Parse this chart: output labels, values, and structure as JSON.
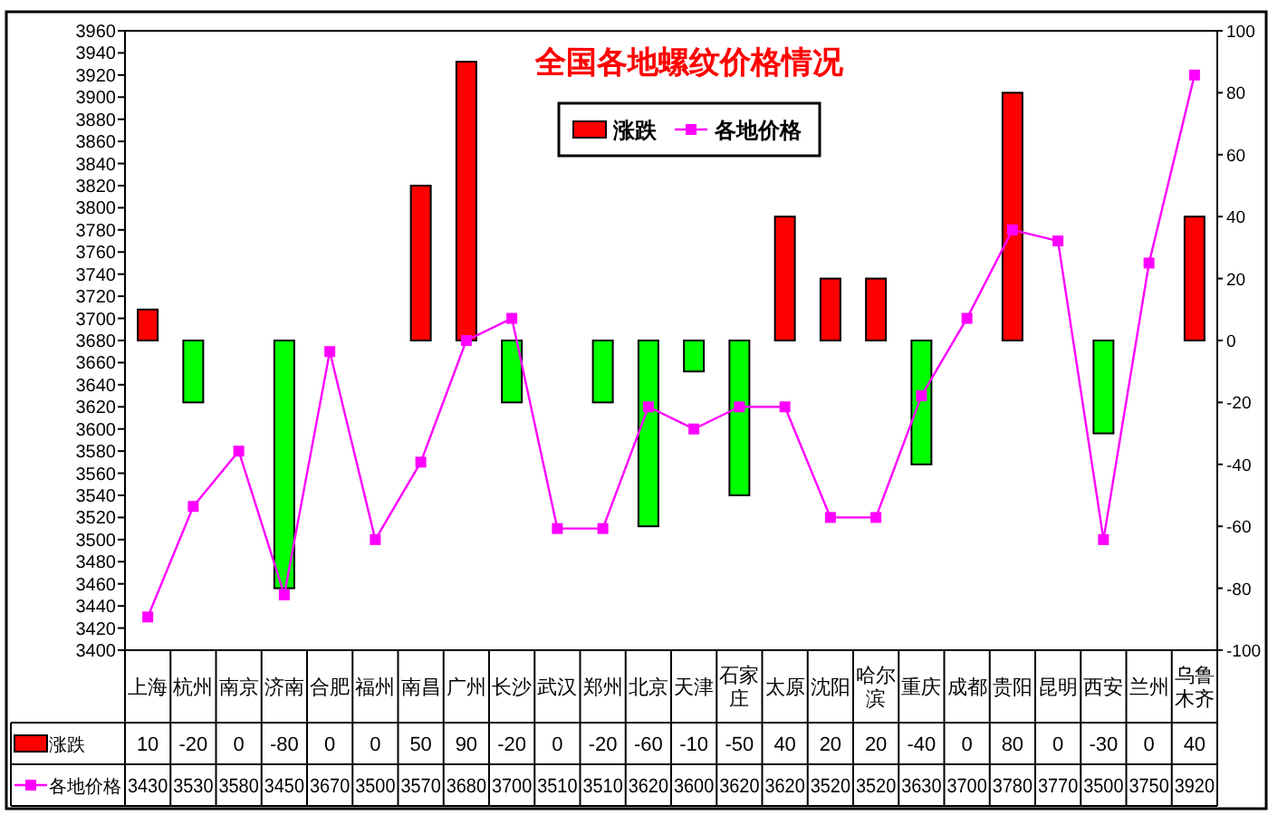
{
  "chart_data": {
    "type": "bar",
    "title": "全国各地螺纹价格情况",
    "categories": [
      "上海",
      "杭州",
      "南京",
      "济南",
      "合肥",
      "福州",
      "南昌",
      "广州",
      "长沙",
      "武汉",
      "郑州",
      "北京",
      "天津",
      "石家庄",
      "太原",
      "沈阳",
      "哈尔滨",
      "重庆",
      "成都",
      "贵阳",
      "昆明",
      "西安",
      "兰州",
      "乌鲁木齐"
    ],
    "series": [
      {
        "name": "涨跌",
        "axis": "y2",
        "color": "#ff0000",
        "colors": [
          "#ff0000",
          "#00ff00",
          null,
          "#00ff00",
          null,
          null,
          "#ff0000",
          "#ff0000",
          "#00ff00",
          null,
          "#00ff00",
          "#00ff00",
          "#00ff00",
          "#00ff00",
          "#ff0000",
          "#ff0000",
          "#ff0000",
          "#00ff00",
          null,
          "#ff0000",
          null,
          "#00ff00",
          null,
          "#ff0000"
        ],
        "values": [
          10,
          -20,
          0,
          -80,
          0,
          0,
          50,
          90,
          -20,
          0,
          -20,
          -60,
          -10,
          -50,
          40,
          20,
          20,
          -40,
          0,
          80,
          0,
          -30,
          0,
          40
        ]
      },
      {
        "name": "各地价格",
        "type": "line",
        "color": "#ff00ff",
        "marker": "square",
        "values": [
          3430,
          3530,
          3580,
          3450,
          3670,
          3500,
          3570,
          3680,
          3700,
          3510,
          3510,
          3620,
          3600,
          3620,
          3620,
          3520,
          3520,
          3630,
          3700,
          3780,
          3770,
          3500,
          3750,
          3920
        ]
      }
    ],
    "ylim": [
      3400,
      3960
    ],
    "yticks": [
      3400,
      3420,
      3440,
      3460,
      3480,
      3500,
      3520,
      3540,
      3560,
      3580,
      3600,
      3620,
      3640,
      3660,
      3680,
      3700,
      3720,
      3740,
      3760,
      3780,
      3800,
      3820,
      3840,
      3860,
      3880,
      3900,
      3920,
      3940,
      3960
    ],
    "y2lim": [
      -100,
      100
    ],
    "y2ticks": [
      -100,
      -80,
      -60,
      -40,
      -20,
      0,
      20,
      40,
      60,
      80,
      100
    ],
    "legend": "top",
    "data_labels": true
  }
}
